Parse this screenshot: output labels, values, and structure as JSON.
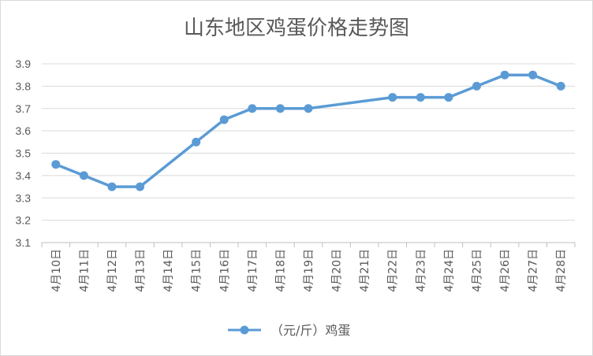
{
  "chart_data": {
    "type": "line",
    "title": "山东地区鸡蛋价格走势图",
    "xlabel": "",
    "ylabel": "",
    "ylim": [
      3.1,
      3.9
    ],
    "yticks": [
      "3.1",
      "3.2",
      "3.3",
      "3.4",
      "3.5",
      "3.6",
      "3.7",
      "3.8",
      "3.9"
    ],
    "categories": [
      "4月10日",
      "4月11日",
      "4月12日",
      "4月13日",
      "4月14日",
      "4月15日",
      "4月16日",
      "4月17日",
      "4月18日",
      "4月19日",
      "4月20日",
      "4月21日",
      "4月22日",
      "4月23日",
      "4月24日",
      "4月25日",
      "4月26日",
      "4月27日",
      "4月28日"
    ],
    "series": [
      {
        "name": "（元/斤）鸡蛋",
        "color": "#5b9bd5",
        "values": [
          3.45,
          3.4,
          3.35,
          3.35,
          null,
          3.55,
          3.65,
          3.7,
          3.7,
          3.7,
          null,
          null,
          3.75,
          3.75,
          3.75,
          3.8,
          3.85,
          3.85,
          3.8
        ]
      }
    ],
    "grid": true,
    "legend_position": "bottom",
    "line_gaps_connected": true
  }
}
